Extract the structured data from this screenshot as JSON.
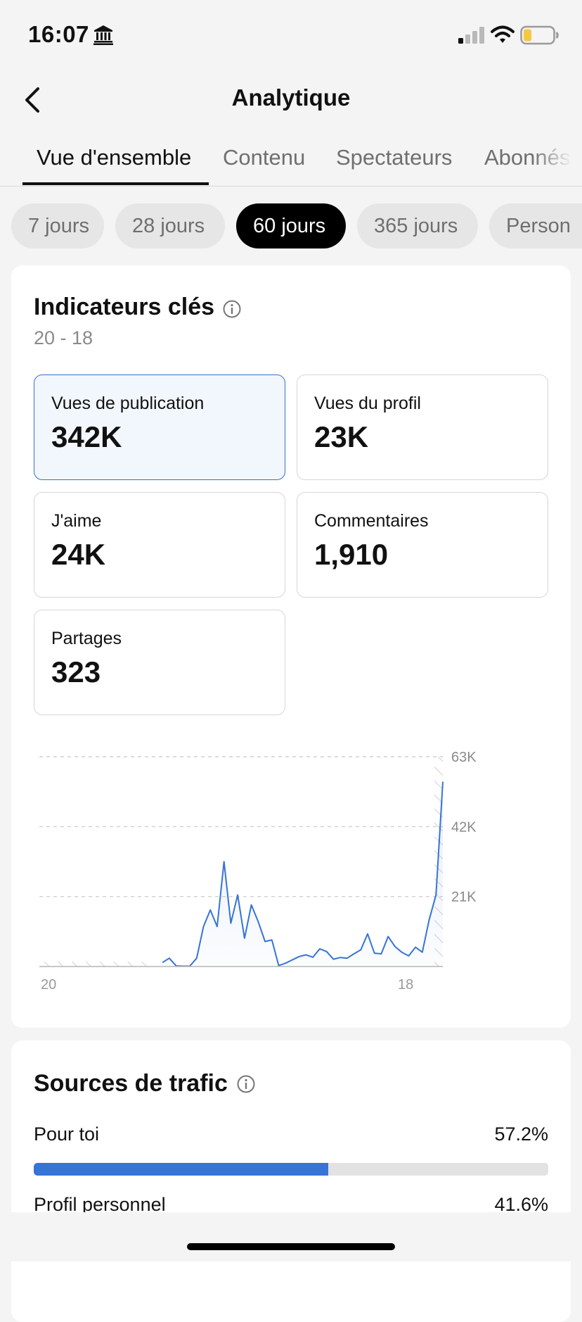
{
  "status": {
    "time": "16:07",
    "icons": [
      "bank-icon",
      "signal-icon",
      "wifi-icon",
      "battery-icon"
    ],
    "battery_color": "#f5c842"
  },
  "nav": {
    "title": "Analytique",
    "back_icon": "chevron-left-icon"
  },
  "tabs": [
    {
      "label": "Vue d'ensemble",
      "active": true
    },
    {
      "label": "Contenu",
      "active": false
    },
    {
      "label": "Spectateurs",
      "active": false
    },
    {
      "label": "Abonnés",
      "active": false
    }
  ],
  "periods": [
    {
      "label": "7 jours",
      "active": false
    },
    {
      "label": "28 jours",
      "active": false
    },
    {
      "label": "60 jours",
      "active": true
    },
    {
      "label": "365 jours",
      "active": false
    },
    {
      "label": "Person",
      "active": false
    }
  ],
  "key_metrics": {
    "title": "Indicateurs clés",
    "date_range": "20 - 18",
    "metrics": [
      {
        "label": "Vues de publication",
        "value": "342K",
        "selected": true
      },
      {
        "label": "Vues du profil",
        "value": "23K",
        "selected": false
      },
      {
        "label": "J'aime",
        "value": "24K",
        "selected": false
      },
      {
        "label": "Commentaires",
        "value": "1,910",
        "selected": false
      },
      {
        "label": "Partages",
        "value": "323",
        "selected": false
      }
    ]
  },
  "chart_data": {
    "type": "line",
    "x_start_label": "20",
    "x_end_label": "18",
    "y_ticks": [
      "63K",
      "42K",
      "21K"
    ],
    "ylim": [
      0,
      63000
    ],
    "line_color": "#3674d6",
    "points": [
      [
        18,
        1200
      ],
      [
        19,
        2500
      ],
      [
        20,
        200
      ],
      [
        21,
        100
      ],
      [
        22,
        100
      ],
      [
        23,
        2500
      ],
      [
        24,
        12000
      ],
      [
        25,
        17000
      ],
      [
        26,
        12000
      ],
      [
        27,
        31500
      ],
      [
        28,
        13000
      ],
      [
        29,
        21500
      ],
      [
        30,
        8500
      ],
      [
        31,
        18500
      ],
      [
        32,
        13500
      ],
      [
        33,
        7500
      ],
      [
        34,
        8000
      ],
      [
        35,
        300
      ],
      [
        36,
        1000
      ],
      [
        37,
        2000
      ],
      [
        38,
        3000
      ],
      [
        39,
        3500
      ],
      [
        40,
        2800
      ],
      [
        41,
        5300
      ],
      [
        42,
        4500
      ],
      [
        43,
        2200
      ],
      [
        44,
        2700
      ],
      [
        45,
        2500
      ],
      [
        46,
        3800
      ],
      [
        47,
        5000
      ],
      [
        48,
        9800
      ],
      [
        49,
        4000
      ],
      [
        50,
        3800
      ],
      [
        51,
        9000
      ],
      [
        52,
        6000
      ],
      [
        53,
        4300
      ],
      [
        54,
        3200
      ],
      [
        55,
        5800
      ],
      [
        56,
        4300
      ],
      [
        57,
        14000
      ],
      [
        58,
        21500
      ],
      [
        59,
        55500
      ]
    ],
    "x_max": 59
  },
  "traffic": {
    "title": "Sources de trafic",
    "sources": [
      {
        "label": "Pour toi",
        "value": "57.2%",
        "fraction": 0.572
      },
      {
        "label": "Profil personnel",
        "value": "41.6%",
        "fraction": 0.416
      }
    ]
  }
}
